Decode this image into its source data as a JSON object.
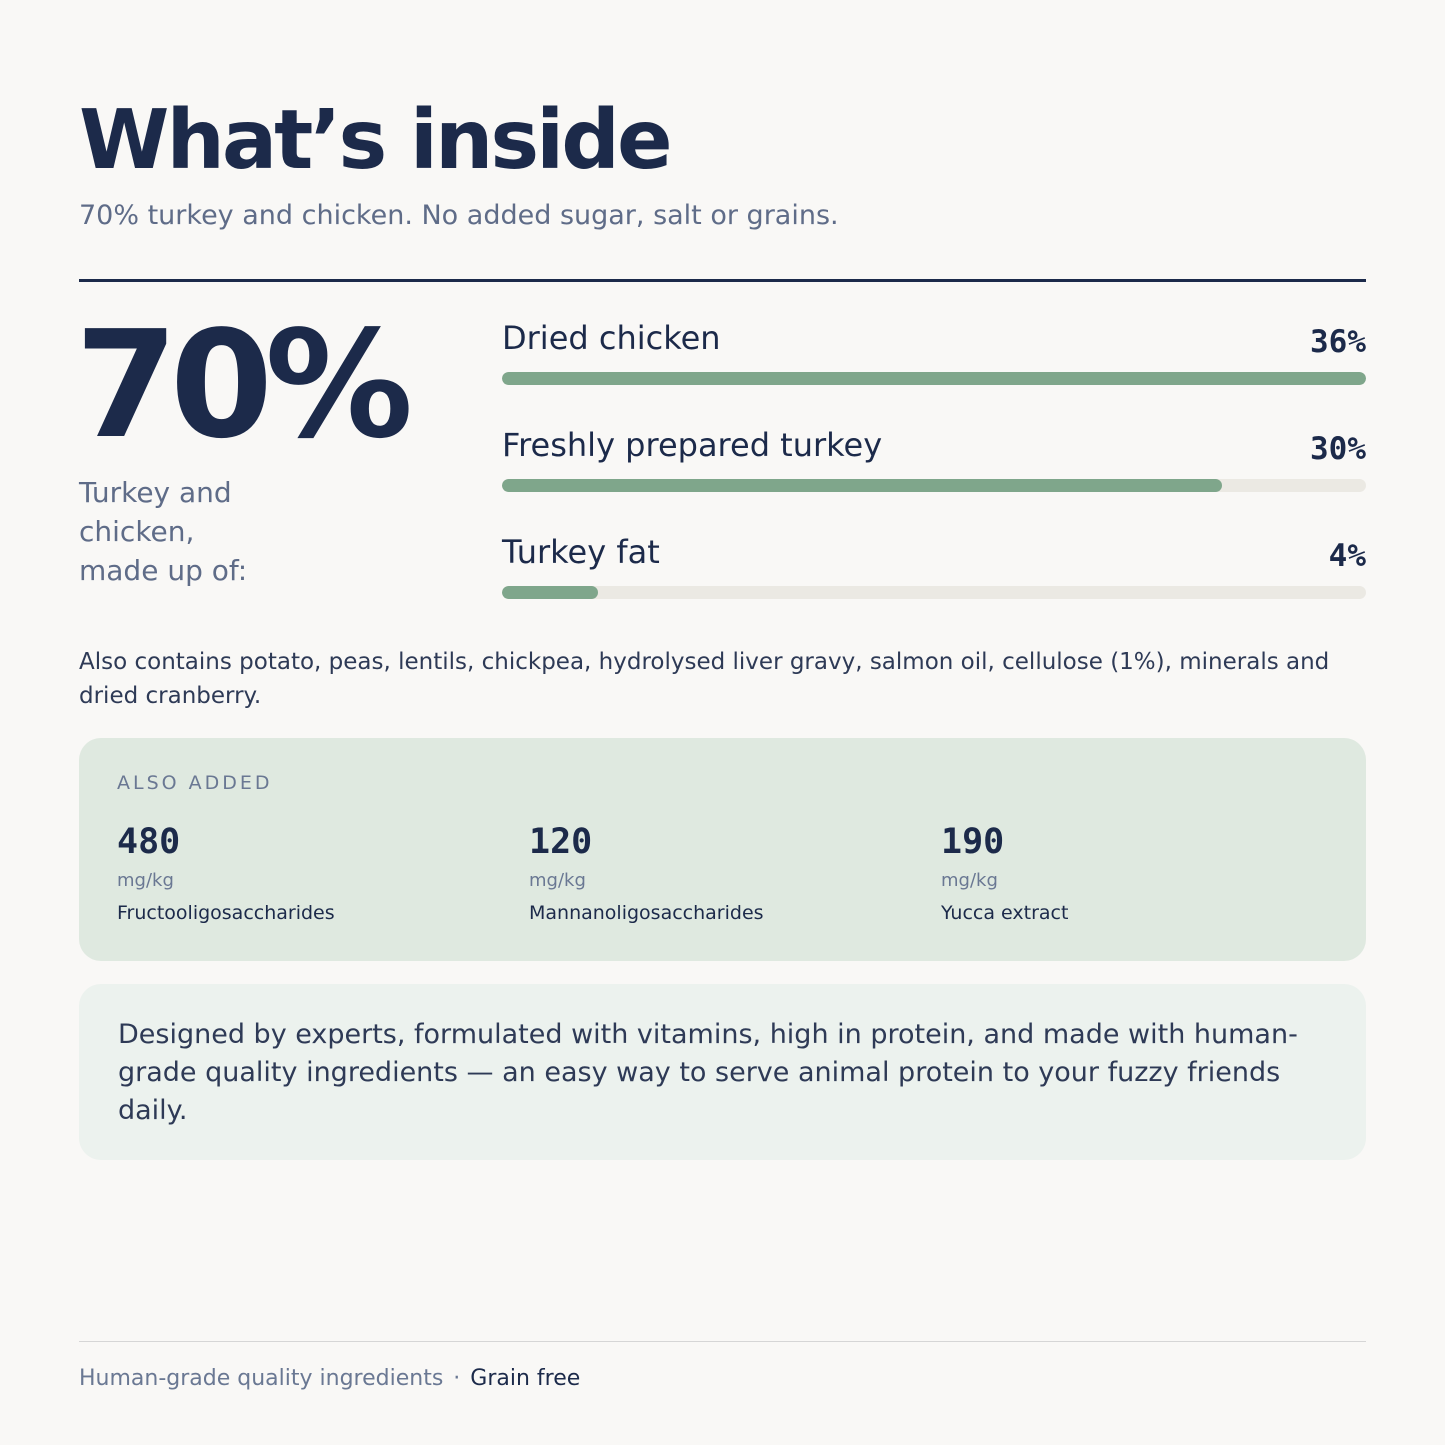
{
  "header": {
    "title": "What’s inside",
    "subtitle": "70% turkey and chicken. No added sugar, salt or grains."
  },
  "summary": {
    "percent": "70%",
    "caption_line1": "Turkey and",
    "caption_line2": "chicken,",
    "caption_line3": "made up of:"
  },
  "ingredients": [
    {
      "name": "Dried chicken",
      "value_label": "36%",
      "fill_percent": 100
    },
    {
      "name": "Freshly prepared turkey",
      "value_label": "30%",
      "fill_percent": 83.3
    },
    {
      "name": "Turkey fat",
      "value_label": "4%",
      "fill_percent": 11.1
    }
  ],
  "also_contains": "Also contains potato, peas, lentils, chickpea, hydrolysed liver gravy, salmon oil, cellulose (1%), minerals and dried cranberry.",
  "also_added": {
    "label": "ALSO ADDED",
    "items": [
      {
        "amount": "480",
        "unit": "mg/kg",
        "name": "Fructooligosaccharides"
      },
      {
        "amount": "120",
        "unit": "mg/kg",
        "name": "Mannanoligosaccharides"
      },
      {
        "amount": "190",
        "unit": "mg/kg",
        "name": "Yucca extract"
      }
    ]
  },
  "designed": "Designed by experts, formulated with vitamins, high in protein, and made with human-grade quality ingredients — an easy way to serve animal protein to your fuzzy friends daily.",
  "footer": {
    "tag1": "Human-grade quality ingredients",
    "separator": "·",
    "tag2": "Grain free"
  },
  "colors": {
    "navy": "#1c2a4a",
    "bar_fill": "#7fa68b",
    "bar_track": "#ebe9e3",
    "added_card": "#dfe9e0",
    "designed_card": "#ecf2ee"
  }
}
